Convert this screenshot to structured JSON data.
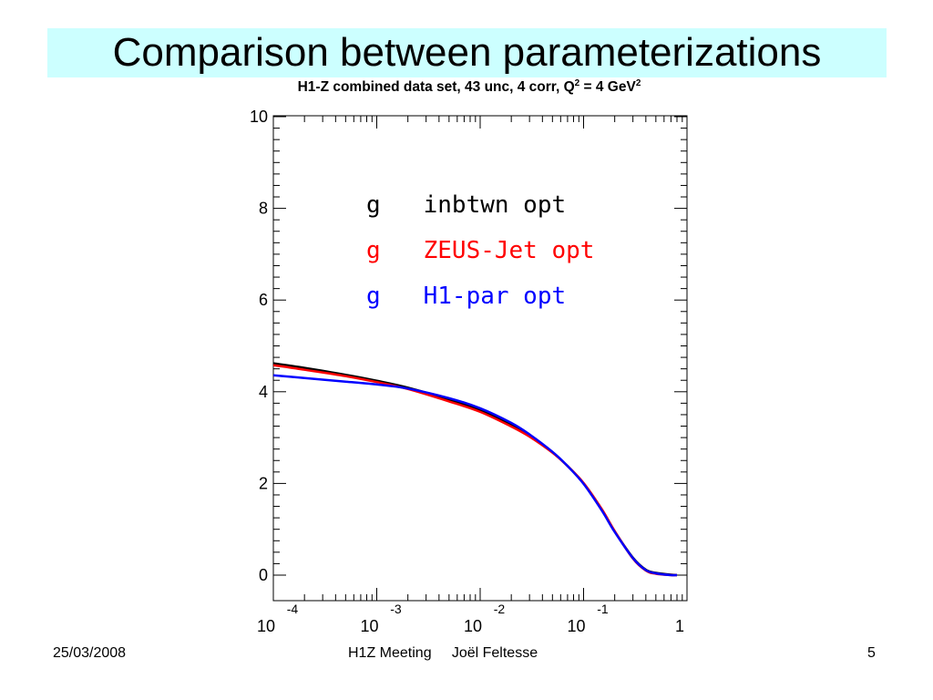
{
  "slide": {
    "title": "Comparison between parameterizations",
    "footer": {
      "date": "25/03/2008",
      "center": "H1Z Meeting     Joël Feltesse",
      "page": "5"
    }
  },
  "chart_data": {
    "type": "line",
    "title": "H1-Z combined data set, 43 unc, 4 corr, Q",
    "title_sup1": "2",
    "title_mid": " = 4 GeV",
    "title_sup2": "2",
    "xlabel": "",
    "ylabel": "",
    "xscale": "log",
    "xlim": [
      0.0001,
      1
    ],
    "ylim": [
      0,
      10
    ],
    "yticks": [
      0,
      2,
      4,
      6,
      8,
      10
    ],
    "xtick_labels": [
      {
        "base": "10",
        "exp": "-4",
        "value": 0.0001
      },
      {
        "base": "10",
        "exp": "-3",
        "value": 0.001
      },
      {
        "base": "10",
        "exp": "-2",
        "value": 0.01
      },
      {
        "base": "10",
        "exp": "-1",
        "value": 0.1
      },
      {
        "base": "1",
        "exp": "",
        "value": 1
      }
    ],
    "grid": false,
    "legend_placement": "top-center",
    "x": [
      0.0001,
      0.0002,
      0.0005,
      0.001,
      0.002,
      0.005,
      0.01,
      0.02,
      0.03,
      0.05,
      0.07,
      0.1,
      0.15,
      0.2,
      0.3,
      0.4,
      0.5,
      0.7,
      0.8
    ],
    "series": [
      {
        "name": "g   inbtwn opt",
        "color": "#000000",
        "values": [
          4.62,
          4.52,
          4.37,
          4.24,
          4.09,
          3.83,
          3.6,
          3.28,
          3.05,
          2.68,
          2.38,
          2.0,
          1.42,
          0.95,
          0.38,
          0.12,
          0.05,
          0.01,
          0.0
        ]
      },
      {
        "name": "g   ZEUS-Jet opt",
        "color": "#ff0000",
        "values": [
          4.58,
          4.48,
          4.34,
          4.21,
          4.06,
          3.79,
          3.56,
          3.24,
          3.02,
          2.67,
          2.38,
          2.01,
          1.44,
          0.96,
          0.36,
          0.1,
          0.03,
          0.0,
          0.0
        ]
      },
      {
        "name": "g   H1-par opt",
        "color": "#0000ff",
        "values": [
          4.36,
          4.3,
          4.22,
          4.16,
          4.07,
          3.86,
          3.64,
          3.32,
          3.07,
          2.69,
          2.38,
          1.99,
          1.41,
          0.94,
          0.37,
          0.11,
          0.04,
          0.0,
          0.0
        ]
      }
    ]
  }
}
